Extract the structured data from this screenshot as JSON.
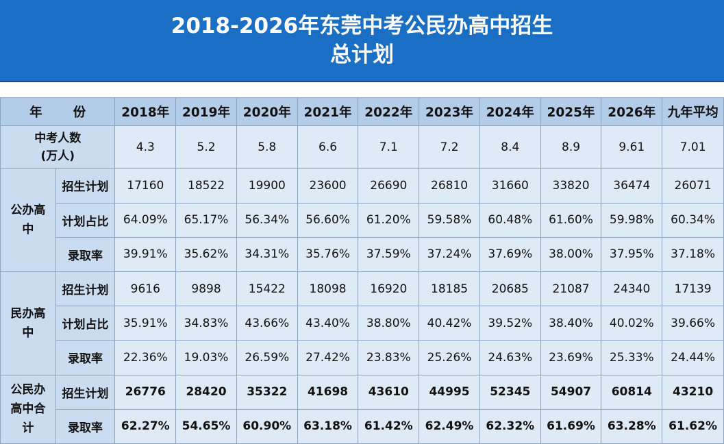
{
  "title": {
    "line1": "2018-2026年东莞中考公民办高中招生",
    "line2": "总计划"
  },
  "header": {
    "year_label_a": "年",
    "year_label_b": "份",
    "years": [
      "2018年",
      "2019年",
      "2020年",
      "2021年",
      "2022年",
      "2023年",
      "2024年",
      "2025年",
      "2026年",
      "九年平均"
    ]
  },
  "exam_count": {
    "label_line1": "中考人数",
    "label_line2": "(万人)",
    "values": [
      "4.3",
      "5.2",
      "5.8",
      "6.6",
      "7.1",
      "7.2",
      "8.4",
      "8.9",
      "9.61",
      "7.01"
    ]
  },
  "public": {
    "group_label": "公办高中",
    "plan_label": "招生计划",
    "plan": [
      "17160",
      "18522",
      "19900",
      "23600",
      "26690",
      "26810",
      "31660",
      "33820",
      "36474",
      "26071"
    ],
    "ratio_label": "计划占比",
    "ratio": [
      "64.09%",
      "65.17%",
      "56.34%",
      "56.60%",
      "61.20%",
      "59.58%",
      "60.48%",
      "61.60%",
      "59.98%",
      "60.34%"
    ],
    "admit_label": "录取率",
    "admit": [
      "39.91%",
      "35.62%",
      "34.31%",
      "35.76%",
      "37.59%",
      "37.24%",
      "37.69%",
      "38.00%",
      "37.95%",
      "37.18%"
    ]
  },
  "private": {
    "group_label": "民办高中",
    "plan_label": "招生计划",
    "plan": [
      "9616",
      "9898",
      "15422",
      "18098",
      "16920",
      "18185",
      "20685",
      "21087",
      "24340",
      "17139"
    ],
    "ratio_label": "计划占比",
    "ratio": [
      "35.91%",
      "34.83%",
      "43.66%",
      "43.40%",
      "38.80%",
      "40.42%",
      "39.52%",
      "38.40%",
      "40.02%",
      "39.66%"
    ],
    "admit_label": "录取率",
    "admit": [
      "22.36%",
      "19.03%",
      "26.59%",
      "27.42%",
      "23.83%",
      "25.26%",
      "24.63%",
      "23.69%",
      "25.33%",
      "24.44%"
    ]
  },
  "total": {
    "group_label": "公民办高中合计",
    "plan_label": "招生计划",
    "plan": [
      "26776",
      "28420",
      "35322",
      "41698",
      "43610",
      "44995",
      "52345",
      "54907",
      "60814",
      "43210"
    ],
    "admit_label": "录取率",
    "admit": [
      "62.27%",
      "54.65%",
      "60.90%",
      "63.18%",
      "61.42%",
      "62.49%",
      "62.32%",
      "61.69%",
      "63.28%",
      "61.62%"
    ]
  }
}
